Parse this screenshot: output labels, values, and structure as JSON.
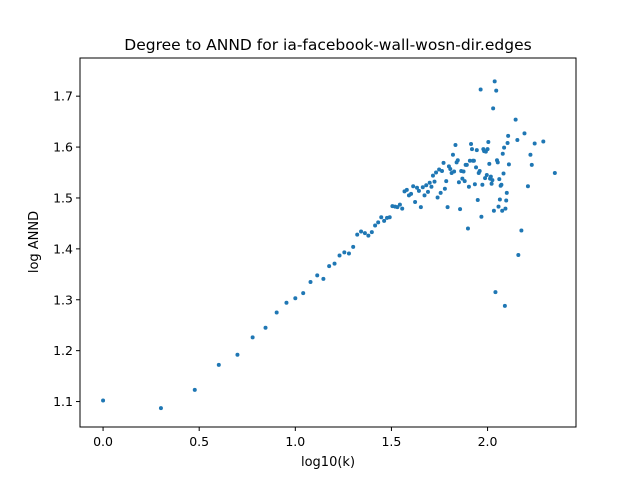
{
  "chart_data": {
    "type": "scatter",
    "title": "Degree to ANND for ia-facebook-wall-wosn-dir.edges",
    "xlabel": "log10(k)",
    "ylabel": "log ANND",
    "xlim": [
      -0.12,
      2.46
    ],
    "ylim": [
      1.05,
      1.775
    ],
    "xticks": [
      0.0,
      0.5,
      1.0,
      1.5,
      2.0
    ],
    "xtick_labels": [
      "0.0",
      "0.5",
      "1.0",
      "1.5",
      "2.0"
    ],
    "yticks": [
      1.1,
      1.2,
      1.3,
      1.4,
      1.5,
      1.6,
      1.7
    ],
    "ytick_labels": [
      "1.1",
      "1.2",
      "1.3",
      "1.4",
      "1.5",
      "1.6",
      "1.7"
    ],
    "grid": false,
    "marker_color": "#1f77b4",
    "points": [
      [
        0.0,
        1.102
      ],
      [
        0.301,
        1.087
      ],
      [
        0.477,
        1.123
      ],
      [
        0.602,
        1.172
      ],
      [
        0.699,
        1.192
      ],
      [
        0.778,
        1.226
      ],
      [
        0.845,
        1.245
      ],
      [
        0.903,
        1.275
      ],
      [
        0.954,
        1.294
      ],
      [
        1.0,
        1.303
      ],
      [
        1.041,
        1.313
      ],
      [
        1.079,
        1.335
      ],
      [
        1.114,
        1.348
      ],
      [
        1.146,
        1.341
      ],
      [
        1.176,
        1.366
      ],
      [
        1.204,
        1.371
      ],
      [
        1.23,
        1.387
      ],
      [
        1.255,
        1.393
      ],
      [
        1.279,
        1.391
      ],
      [
        1.301,
        1.404
      ],
      [
        1.322,
        1.428
      ],
      [
        1.342,
        1.434
      ],
      [
        1.362,
        1.431
      ],
      [
        1.38,
        1.426
      ],
      [
        1.398,
        1.433
      ],
      [
        1.415,
        1.446
      ],
      [
        1.431,
        1.452
      ],
      [
        1.447,
        1.462
      ],
      [
        1.462,
        1.455
      ],
      [
        1.477,
        1.461
      ],
      [
        1.491,
        1.462
      ],
      [
        1.505,
        1.484
      ],
      [
        1.519,
        1.483
      ],
      [
        1.531,
        1.482
      ],
      [
        1.544,
        1.487
      ],
      [
        1.556,
        1.479
      ],
      [
        1.568,
        1.513
      ],
      [
        1.58,
        1.516
      ],
      [
        1.591,
        1.505
      ],
      [
        1.602,
        1.508
      ],
      [
        1.613,
        1.523
      ],
      [
        1.623,
        1.492
      ],
      [
        1.633,
        1.52
      ],
      [
        1.643,
        1.514
      ],
      [
        1.653,
        1.482
      ],
      [
        1.663,
        1.521
      ],
      [
        1.672,
        1.505
      ],
      [
        1.681,
        1.525
      ],
      [
        1.69,
        1.512
      ],
      [
        1.699,
        1.53
      ],
      [
        1.708,
        1.522
      ],
      [
        1.716,
        1.544
      ],
      [
        1.724,
        1.532
      ],
      [
        1.732,
        1.55
      ],
      [
        1.74,
        1.501
      ],
      [
        1.748,
        1.556
      ],
      [
        1.756,
        1.51
      ],
      [
        1.763,
        1.553
      ],
      [
        1.771,
        1.569
      ],
      [
        1.778,
        1.518
      ],
      [
        1.785,
        1.533
      ],
      [
        1.792,
        1.482
      ],
      [
        1.799,
        1.562
      ],
      [
        1.806,
        1.557
      ],
      [
        1.813,
        1.549
      ],
      [
        1.82,
        1.585
      ],
      [
        1.826,
        1.552
      ],
      [
        1.833,
        1.604
      ],
      [
        1.839,
        1.57
      ],
      [
        1.845,
        1.574
      ],
      [
        1.851,
        1.531
      ],
      [
        1.857,
        1.478
      ],
      [
        1.863,
        1.553
      ],
      [
        1.869,
        1.538
      ],
      [
        1.875,
        1.552
      ],
      [
        1.881,
        1.533
      ],
      [
        1.886,
        1.565
      ],
      [
        1.892,
        1.565
      ],
      [
        1.898,
        1.44
      ],
      [
        1.903,
        1.522
      ],
      [
        1.908,
        1.573
      ],
      [
        1.914,
        1.606
      ],
      [
        1.919,
        1.596
      ],
      [
        1.924,
        1.573
      ],
      [
        1.929,
        1.573
      ],
      [
        1.934,
        1.527
      ],
      [
        1.94,
        1.56
      ],
      [
        1.944,
        1.594
      ],
      [
        1.949,
        1.496
      ],
      [
        1.954,
        1.549
      ],
      [
        1.959,
        1.553
      ],
      [
        1.964,
        1.713
      ],
      [
        1.968,
        1.463
      ],
      [
        1.973,
        1.526
      ],
      [
        1.978,
        1.596
      ],
      [
        1.982,
        1.592
      ],
      [
        1.987,
        1.539
      ],
      [
        1.991,
        1.591
      ],
      [
        1.996,
        1.545
      ],
      [
        2.0,
        1.596
      ],
      [
        2.004,
        1.61
      ],
      [
        2.009,
        1.567
      ],
      [
        2.013,
        1.538
      ],
      [
        2.017,
        1.542
      ],
      [
        2.021,
        1.528
      ],
      [
        2.025,
        1.535
      ],
      [
        2.029,
        1.676
      ],
      [
        2.033,
        1.475
      ],
      [
        2.037,
        1.729
      ],
      [
        2.041,
        1.315
      ],
      [
        2.045,
        1.711
      ],
      [
        2.049,
        1.574
      ],
      [
        2.053,
        1.57
      ],
      [
        2.057,
        1.483
      ],
      [
        2.061,
        1.537
      ],
      [
        2.064,
        1.497
      ],
      [
        2.068,
        1.524
      ],
      [
        2.072,
        1.526
      ],
      [
        2.076,
        1.475
      ],
      [
        2.079,
        1.587
      ],
      [
        2.083,
        1.548
      ],
      [
        2.086,
        1.599
      ],
      [
        2.09,
        1.288
      ],
      [
        2.093,
        1.479
      ],
      [
        2.097,
        1.495
      ],
      [
        2.1,
        1.51
      ],
      [
        2.104,
        1.608
      ],
      [
        2.107,
        1.622
      ],
      [
        2.111,
        1.566
      ],
      [
        2.146,
        1.654
      ],
      [
        2.155,
        1.614
      ],
      [
        2.16,
        1.388
      ],
      [
        2.176,
        1.436
      ],
      [
        2.192,
        1.627
      ],
      [
        2.21,
        1.523
      ],
      [
        2.223,
        1.585
      ],
      [
        2.23,
        1.565
      ],
      [
        2.245,
        1.607
      ],
      [
        2.29,
        1.611
      ],
      [
        2.35,
        1.549
      ]
    ]
  }
}
